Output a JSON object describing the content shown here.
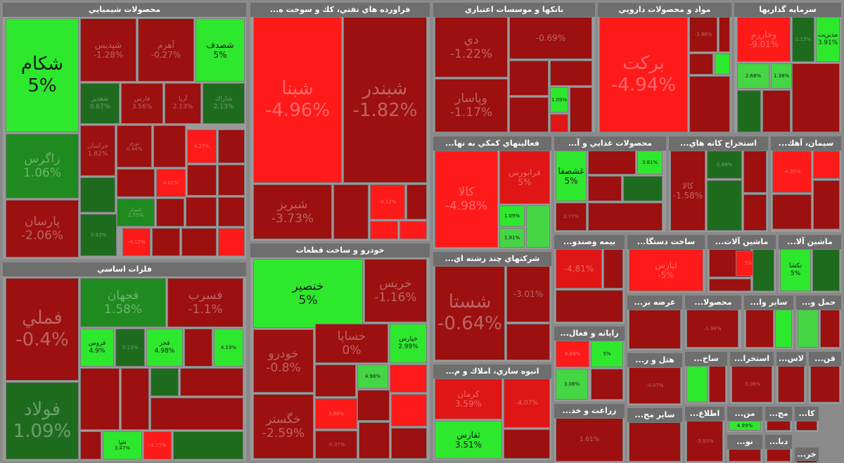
{
  "colors": {
    "bright_green": "#2ee82e",
    "light_green": "#44d644",
    "dark_green": "#1e6b1e",
    "green": "#1f8a1f",
    "bright_red": "#ff1a1a",
    "red": "#e01515",
    "dark_red": "#9c1010",
    "deep_red": "#860b0b"
  },
  "sectors": [
    {
      "title": "محصولات شيميايي",
      "tiles": [
        {
          "name": "شكام",
          "value": "5%"
        },
        {
          "name": "زاگرس",
          "value": "1.06%"
        },
        {
          "name": "پارسان",
          "value": "-2.06%"
        },
        {
          "name": "شپديس",
          "value": "-1.28%"
        },
        {
          "name": "آهرم",
          "value": "-0.27%"
        },
        {
          "name": "شصدف",
          "value": "5%"
        },
        {
          "name": "شغدير",
          "value": "0.67%"
        },
        {
          "name": "فارس",
          "value": "3.56%"
        },
        {
          "name": "آريا",
          "value": "2.13%"
        },
        {
          "name": "شاراك",
          "value": "2.13%"
        },
        {
          "name": "خراسان",
          "value": "1.82%"
        },
        {
          "name": "نوري",
          "value": "0.44%"
        },
        {
          "name": "",
          "value": "4.27%"
        },
        {
          "name": "",
          "value": "4.02%"
        },
        {
          "name": "شيراز",
          "value": "2.75%"
        },
        {
          "name": "",
          "value": "-4.12%"
        },
        {
          "name": "",
          "value": "0.43%"
        }
      ]
    },
    {
      "title": "...فراورده هاي نفتي، كك و سوخت ه",
      "tiles": [
        {
          "name": "شبنا",
          "value": "-4.96%"
        },
        {
          "name": "شبندر",
          "value": "-1.82%"
        },
        {
          "name": "شبريز",
          "value": "-3.73%"
        },
        {
          "name": "",
          "value": "-3.12%"
        }
      ]
    },
    {
      "title": "بانكها و موسسات اعتباري",
      "tiles": [
        {
          "name": "دي",
          "value": "-1.22%"
        },
        {
          "name": "وپاسار",
          "value": "-1.17%"
        },
        {
          "name": "",
          "value": "-0.69%"
        },
        {
          "name": "",
          "value": "1.09%"
        }
      ]
    },
    {
      "title": "مواد و محصولات دارويي",
      "tiles": [
        {
          "name": "بركت",
          "value": "-4.94%"
        },
        {
          "name": "",
          "value": "-3.88%"
        }
      ]
    },
    {
      "title": "سرمايه گذاريها",
      "tiles": [
        {
          "name": "وخارزم",
          "value": "-9.01%"
        },
        {
          "name": "",
          "value": "1.13%"
        },
        {
          "name": "مديريت",
          "value": "3.91%"
        },
        {
          "name": "",
          "value": "2.68%"
        },
        {
          "name": "",
          "value": "1.38%"
        }
      ]
    },
    {
      "title": "...فعاليتهاي كمكي به نها",
      "tiles": [
        {
          "name": "كالا",
          "value": "-4.98%"
        },
        {
          "name": "فرابورس",
          "value": "5%"
        },
        {
          "name": "",
          "value": "1.09%"
        },
        {
          "name": "",
          "value": "1.91%"
        }
      ]
    },
    {
      "title": "...محصولات غذايي و آ",
      "tiles": [
        {
          "name": "غشصفا",
          "value": "5%"
        },
        {
          "name": "",
          "value": "3.81%"
        },
        {
          "name": "",
          "value": "3.77%"
        }
      ]
    },
    {
      "title": "...استخراج كانه هاي",
      "tiles": [
        {
          "name": "كالا",
          "value": "-1.58%"
        },
        {
          "name": "",
          "value": "0.88%"
        }
      ]
    },
    {
      "title": "...سيمان، آهك",
      "tiles": [
        {
          "name": "",
          "value": "-4.95%"
        }
      ]
    },
    {
      "title": "فلزات اساسي",
      "tiles": [
        {
          "name": "فملي",
          "value": "-0.4%"
        },
        {
          "name": "فولاد",
          "value": "1.09%"
        },
        {
          "name": "فجهان",
          "value": "1.58%"
        },
        {
          "name": "فسرب",
          "value": "-1.1%"
        },
        {
          "name": "فروس",
          "value": "4.9%"
        },
        {
          "name": "",
          "value": "0.13%"
        },
        {
          "name": "فجر",
          "value": "4.98%"
        },
        {
          "name": "",
          "value": "4.19%"
        },
        {
          "name": "فلوا",
          "value": "3.47%"
        },
        {
          "name": "",
          "value": "-3.77%"
        }
      ]
    },
    {
      "title": "خودرو و ساخت قطعات",
      "tiles": [
        {
          "name": "خنصير",
          "value": "5%"
        },
        {
          "name": "خريس",
          "value": "-1.16%"
        },
        {
          "name": "خساپا",
          "value": "0%"
        },
        {
          "name": "خودرو",
          "value": "-0.8%"
        },
        {
          "name": "خپارس",
          "value": "2.99%"
        },
        {
          "name": "خگستر",
          "value": "-2.59%"
        },
        {
          "name": "",
          "value": "4.98%"
        },
        {
          "name": "",
          "value": "3.88%"
        },
        {
          "name": "",
          "value": "-5.37%"
        }
      ]
    },
    {
      "title": "...شركتهاي چند رشته اي",
      "tiles": [
        {
          "name": "شستا",
          "value": "-0.64%"
        },
        {
          "name": "",
          "value": "-3.01%"
        }
      ]
    },
    {
      "title": "...انبوه سازي، املاك و م",
      "tiles": [
        {
          "name": "كرمان",
          "value": "3.59%"
        },
        {
          "name": "ثفارس",
          "value": "3.51%"
        },
        {
          "name": "",
          "value": "-4.07%"
        }
      ]
    },
    {
      "title": "...بيمه وصندو",
      "tiles": [
        {
          "name": "",
          "value": "-4.81%"
        }
      ]
    },
    {
      "title": "...ساخت دستگا",
      "tiles": [
        {
          "name": "لپارس",
          "value": "-5%"
        }
      ]
    },
    {
      "title": "...ماشين آلات",
      "tiles": [
        {
          "name": "",
          "value": "5%"
        }
      ]
    },
    {
      "title": "...ماشين آلا",
      "tiles": [
        {
          "name": "تكشا",
          "value": "5%"
        }
      ]
    },
    {
      "title": "...عرضه بر",
      "tiles": []
    },
    {
      "title": "...محصولا",
      "tiles": [
        {
          "name": "",
          "value": "-1.94%"
        }
      ]
    },
    {
      "title": "...ساير وا",
      "tiles": []
    },
    {
      "title": "...حمل و",
      "tiles": []
    },
    {
      "title": "...رايانه و فعال",
      "tiles": [
        {
          "name": "",
          "value": "4.89%"
        },
        {
          "name": "",
          "value": "5%"
        },
        {
          "name": "",
          "value": "3.08%"
        }
      ]
    },
    {
      "title": "...هتل و ر",
      "tiles": [
        {
          "name": "",
          "value": "-4.07%"
        }
      ]
    },
    {
      "title": "...ساخ",
      "tiles": []
    },
    {
      "title": "...استخرا",
      "tiles": [
        {
          "name": "",
          "value": "-3.06%"
        }
      ]
    },
    {
      "title": "...لاس",
      "tiles": []
    },
    {
      "title": "...قن",
      "tiles": []
    },
    {
      "title": "...زراعت و خد",
      "tiles": [
        {
          "name": "",
          "value": "1.61%"
        }
      ]
    },
    {
      "title": "...ساير مح",
      "tiles": []
    },
    {
      "title": "...اطلاع",
      "tiles": [
        {
          "name": "",
          "value": "-3.83%"
        }
      ]
    },
    {
      "title": "...من",
      "tiles": [
        {
          "name": "",
          "value": "4.99%"
        }
      ]
    },
    {
      "title": "...مح",
      "tiles": []
    },
    {
      "title": "...كا",
      "tiles": []
    },
    {
      "title": "...نو",
      "tiles": []
    },
    {
      "title": "...دبا",
      "tiles": []
    },
    {
      "title": "...خر",
      "tiles": []
    }
  ]
}
